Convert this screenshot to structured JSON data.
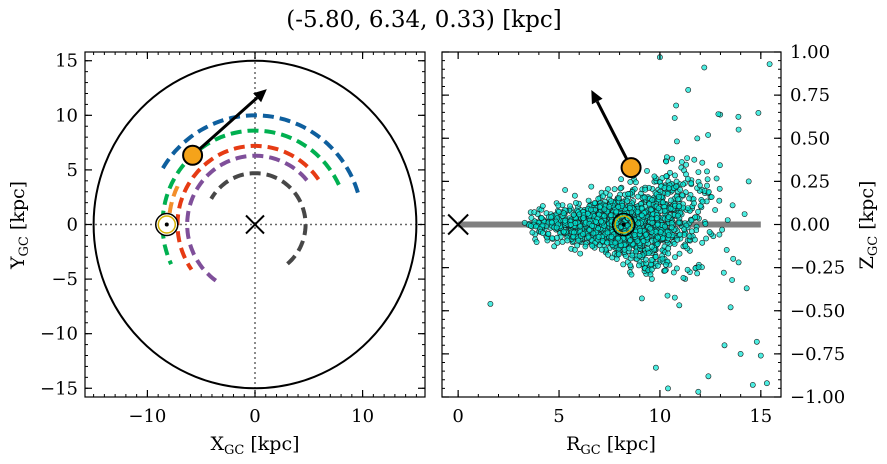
{
  "figure": {
    "title": "(-5.80, 6.34, 0.33) [kpc]"
  },
  "chart_data": [
    {
      "type": "line",
      "panel": "left",
      "xlabel_main": "X",
      "xlabel_sub": "GC",
      "xlabel_unit": " [kpc]",
      "ylabel_main": "Y",
      "ylabel_sub": "GC",
      "ylabel_unit": " [kpc]",
      "xlim": [
        -15.8,
        15.8
      ],
      "ylim": [
        -15.8,
        15.8
      ],
      "xticks": [
        -10,
        0,
        10
      ],
      "yticks": [
        -15,
        -10,
        -5,
        0,
        5,
        10,
        15
      ],
      "xtick_labels": [
        "−10",
        "0",
        "10"
      ],
      "ytick_labels": [
        "−15",
        "−10",
        "−5",
        "0",
        "5",
        "10",
        "15"
      ],
      "boundary_circle_radius": 15,
      "reference_lines": {
        "x": 0,
        "y": 0,
        "style": "dotted"
      },
      "galactic_center": [
        0,
        0
      ],
      "sun_position": [
        -8.2,
        0.0
      ],
      "target_position": [
        -5.8,
        6.34
      ],
      "velocity_arrow_tip": [
        1.1,
        12.4
      ],
      "series": [
        {
          "color": "#0e5f9e",
          "radius": 10.0,
          "phi_range_deg": [
            17,
            149
          ]
        },
        {
          "color": "#00b050",
          "radius": 8.6,
          "phi_range_deg": [
            25,
            205
          ]
        },
        {
          "color": "#f28e2b",
          "radius": 8.0,
          "phi_range_deg": [
            154,
            180
          ]
        },
        {
          "color": "#e63b14",
          "radius": 7.2,
          "phi_range_deg": [
            35,
            215
          ]
        },
        {
          "color": "#7f4f9a",
          "radius": 6.3,
          "phi_range_deg": [
            40,
            235
          ]
        },
        {
          "color": "#474747",
          "radius": 4.7,
          "phi_range_deg": [
            -50,
            150
          ]
        }
      ]
    },
    {
      "type": "scatter",
      "panel": "right",
      "xlabel_main": "R",
      "xlabel_sub": "GC",
      "xlabel_unit": " [kpc]",
      "ylabel_main": "Z",
      "ylabel_sub": "GC",
      "ylabel_unit": " [kpc]",
      "xlim": [
        -0.8,
        16
      ],
      "ylim": [
        -1.0,
        1.0
      ],
      "xticks": [
        0,
        5,
        10,
        15
      ],
      "yticks": [
        -1.0,
        -0.75,
        -0.5,
        -0.25,
        0.0,
        0.25,
        0.5,
        0.75,
        1.0
      ],
      "xtick_labels": [
        "0",
        "5",
        "10",
        "15"
      ],
      "ytick_labels": [
        "−1.00",
        "−0.75",
        "−0.50",
        "−0.25",
        "0.00",
        "0.25",
        "0.50",
        "0.75",
        "1.00"
      ],
      "galactic_center": [
        0,
        0
      ],
      "disk_line": {
        "x": [
          0,
          15
        ],
        "z": 0,
        "color": "#808080"
      },
      "sun_position": [
        8.2,
        0.0
      ],
      "target_position": [
        8.57,
        0.33
      ],
      "velocity_arrow_tip": [
        6.6,
        0.78
      ],
      "scatter_color": "#00e5d4",
      "scatter_n": 1800,
      "outlier_points": [
        [
          1.6,
          -0.46
        ],
        [
          3.3,
          0.01
        ],
        [
          10.0,
          0.97
        ],
        [
          12.2,
          0.91
        ],
        [
          14.4,
          0.25
        ],
        [
          13.5,
          -0.48
        ],
        [
          14.0,
          -0.75
        ],
        [
          14.8,
          -0.68
        ],
        [
          15.0,
          -0.76
        ],
        [
          15.3,
          -0.92
        ],
        [
          14.6,
          -0.93
        ],
        [
          12.4,
          -0.88
        ],
        [
          11.9,
          -0.97
        ],
        [
          10.4,
          -0.95
        ],
        [
          9.8,
          -0.83
        ],
        [
          13.2,
          -0.7
        ],
        [
          12.9,
          0.64
        ],
        [
          13.9,
          0.55
        ],
        [
          11.4,
          0.78
        ],
        [
          10.8,
          0.69
        ],
        [
          6.6,
          0.22
        ],
        [
          5.3,
          0.2
        ],
        [
          4.2,
          -0.05
        ],
        [
          14.3,
          -0.37
        ],
        [
          13.9,
          -0.22
        ]
      ]
    }
  ]
}
